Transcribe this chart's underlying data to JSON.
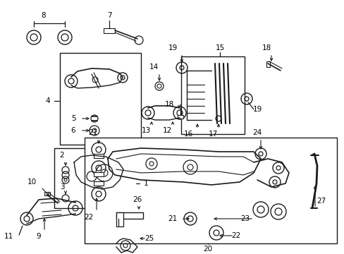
{
  "bg_color": "#ffffff",
  "line_color": "#1a1a1a",
  "fig_width": 4.89,
  "fig_height": 3.6,
  "dpi": 100,
  "font_size": 7.5,
  "boxes": {
    "upper_arm": [
      0.175,
      0.475,
      0.215,
      0.265
    ],
    "lower_knuckle": [
      0.155,
      0.34,
      0.195,
      0.18
    ],
    "stab_bar": [
      0.525,
      0.52,
      0.175,
      0.21
    ],
    "subframe": [
      0.245,
      0.13,
      0.49,
      0.315
    ]
  }
}
